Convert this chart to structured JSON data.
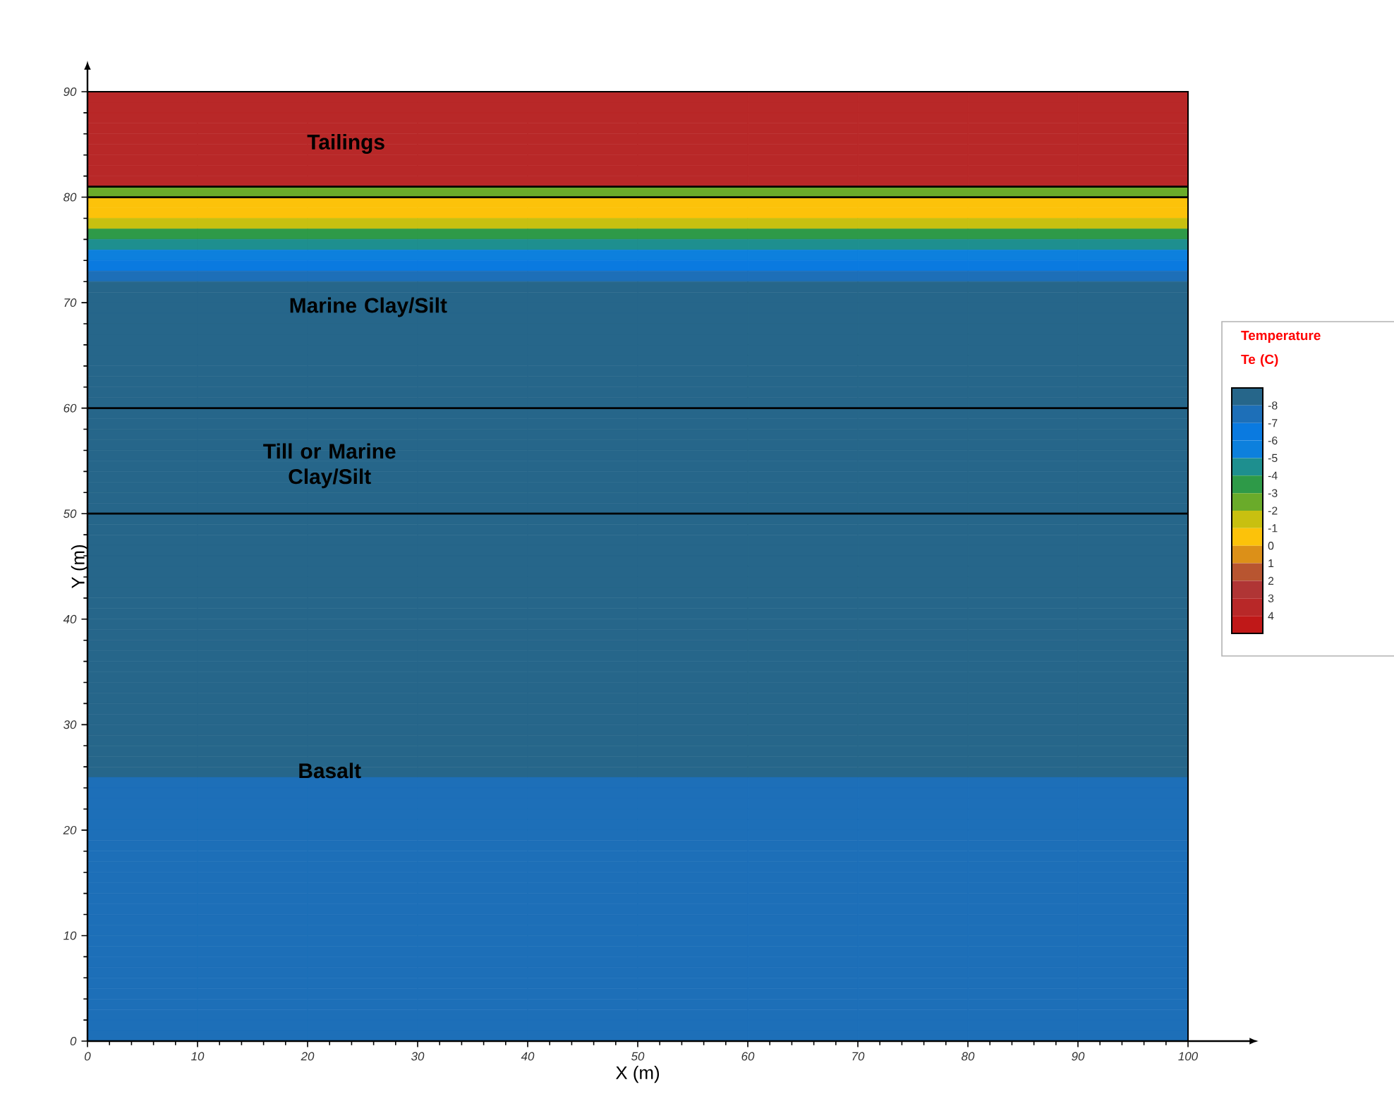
{
  "chart_data": {
    "type": "heatmap",
    "xlabel": "X (m)",
    "ylabel": "Y (m)",
    "clabel": "Temperature Te (C)",
    "xlim": [
      0,
      100
    ],
    "ylim": [
      0,
      90
    ],
    "xticks": [
      0,
      10,
      20,
      30,
      40,
      50,
      60,
      70,
      80,
      90,
      100
    ],
    "yticks": [
      0,
      10,
      20,
      30,
      40,
      50,
      60,
      70,
      80,
      90
    ],
    "x": [
      5,
      15,
      25,
      35,
      45,
      55,
      65,
      75,
      85,
      95
    ],
    "y": [
      89.5,
      88.5,
      87.5,
      86.5,
      85.5,
      84.5,
      83.5,
      82.5,
      81.5,
      80.5,
      79.5,
      78.5,
      77.5,
      76.5,
      75.5,
      74.5,
      73.5,
      72.5,
      71.5,
      70.5,
      69.5,
      68.5,
      67.5,
      66.5,
      65.5,
      64.5,
      63.5,
      62.5,
      61.5,
      60.5,
      59.5,
      58.5,
      57.5,
      56.5,
      55.5,
      54.5,
      53.5,
      52.5,
      51.5,
      50.5,
      49.5,
      48.5,
      47.5,
      46.5,
      45.5,
      44.5,
      43.5,
      42.5,
      41.5,
      40.5,
      39.5,
      38.5,
      37.5,
      36.5,
      35.5,
      34.5,
      33.5,
      32.5,
      31.5,
      30.5,
      29.5,
      28.5,
      27.5,
      26.5,
      25.5,
      24.5,
      23.5,
      22.5,
      21.5,
      20.5,
      19.5,
      18.5,
      17.5,
      16.5,
      15.5,
      14.5,
      13.5,
      12.5,
      11.5,
      10.5,
      9.5,
      8.5,
      7.5,
      6.5,
      5.5,
      4.5,
      3.5,
      2.5,
      1.5,
      0.5
    ],
    "cells": [
      [
        3.5,
        3.5,
        3.5,
        3.5,
        3.5,
        3.5,
        3.5,
        3.5,
        3.5,
        3.5
      ],
      [
        3.5,
        3.5,
        3.5,
        3.5,
        3.5,
        3.5,
        3.5,
        3.5,
        3.5,
        3.5
      ],
      [
        3.5,
        3.5,
        3.5,
        3.5,
        3.5,
        3.5,
        3.5,
        3.5,
        3.5,
        3.5
      ],
      [
        3.5,
        3.5,
        3.5,
        3.5,
        3.5,
        3.5,
        3.5,
        3.5,
        3.5,
        3.5
      ],
      [
        3.5,
        3.5,
        3.5,
        3.5,
        3.5,
        3.5,
        3.5,
        3.5,
        3.5,
        3.5
      ],
      [
        3.5,
        3.5,
        3.5,
        3.5,
        3.5,
        3.5,
        3.5,
        3.5,
        3.5,
        3.5
      ],
      [
        3.5,
        3.5,
        3.5,
        3.5,
        3.5,
        3.5,
        3.5,
        3.5,
        3.5,
        3.5
      ],
      [
        3.5,
        3.5,
        3.5,
        3.5,
        3.5,
        3.5,
        3.5,
        3.5,
        3.5,
        3.5
      ],
      [
        3.5,
        3.5,
        3.5,
        3.5,
        3.5,
        3.5,
        3.5,
        3.5,
        3.5,
        3.5
      ],
      [
        -2.5,
        -2.5,
        -2.5,
        -2.5,
        -2.5,
        -2.5,
        -2.5,
        -2.5,
        -2.5,
        -2.5
      ],
      [
        -0.5,
        -0.5,
        -0.5,
        -0.5,
        -0.5,
        -0.5,
        -0.5,
        -0.5,
        -0.5,
        -0.5
      ],
      [
        -0.5,
        -0.5,
        -0.5,
        -0.5,
        -0.5,
        -0.5,
        -0.5,
        -0.5,
        -0.5,
        -0.5
      ],
      [
        -1.5,
        -1.5,
        -1.5,
        -1.5,
        -1.5,
        -1.5,
        -1.5,
        -1.5,
        -1.5,
        -1.5
      ],
      [
        -3.5,
        -3.5,
        -3.5,
        -3.5,
        -3.5,
        -3.5,
        -3.5,
        -3.5,
        -3.5,
        -3.5
      ],
      [
        -4.5,
        -4.5,
        -4.5,
        -4.5,
        -4.5,
        -4.5,
        -4.5,
        -4.5,
        -4.5,
        -4.5
      ],
      [
        -5.5,
        -5.5,
        -5.5,
        -5.5,
        -5.5,
        -5.5,
        -5.5,
        -5.5,
        -5.5,
        -5.5
      ],
      [
        -6.5,
        -6.5,
        -6.5,
        -6.5,
        -6.5,
        -6.5,
        -6.5,
        -6.5,
        -6.5,
        -6.5
      ],
      [
        -7.5,
        -7.5,
        -7.5,
        -7.5,
        -7.5,
        -7.5,
        -7.5,
        -7.5,
        -7.5,
        -7.5
      ],
      [
        -8.5,
        -8.5,
        -8.5,
        -8.5,
        -8.5,
        -8.5,
        -8.5,
        -8.5,
        -8.5,
        -8.5
      ],
      [
        -8.5,
        -8.5,
        -8.5,
        -8.5,
        -8.5,
        -8.5,
        -8.5,
        -8.5,
        -8.5,
        -8.5
      ],
      [
        -8.5,
        -8.5,
        -8.5,
        -8.5,
        -8.5,
        -8.5,
        -8.5,
        -8.5,
        -8.5,
        -8.5
      ],
      [
        -8.5,
        -8.5,
        -8.5,
        -8.5,
        -8.5,
        -8.5,
        -8.5,
        -8.5,
        -8.5,
        -8.5
      ],
      [
        -8.5,
        -8.5,
        -8.5,
        -8.5,
        -8.5,
        -8.5,
        -8.5,
        -8.5,
        -8.5,
        -8.5
      ],
      [
        -8.5,
        -8.5,
        -8.5,
        -8.5,
        -8.5,
        -8.5,
        -8.5,
        -8.5,
        -8.5,
        -8.5
      ],
      [
        -8.5,
        -8.5,
        -8.5,
        -8.5,
        -8.5,
        -8.5,
        -8.5,
        -8.5,
        -8.5,
        -8.5
      ],
      [
        -8.5,
        -8.5,
        -8.5,
        -8.5,
        -8.5,
        -8.5,
        -8.5,
        -8.5,
        -8.5,
        -8.5
      ],
      [
        -8.5,
        -8.5,
        -8.5,
        -8.5,
        -8.5,
        -8.5,
        -8.5,
        -8.5,
        -8.5,
        -8.5
      ],
      [
        -8.5,
        -8.5,
        -8.5,
        -8.5,
        -8.5,
        -8.5,
        -8.5,
        -8.5,
        -8.5,
        -8.5
      ],
      [
        -8.5,
        -8.5,
        -8.5,
        -8.5,
        -8.5,
        -8.5,
        -8.5,
        -8.5,
        -8.5,
        -8.5
      ],
      [
        -8.5,
        -8.5,
        -8.5,
        -8.5,
        -8.5,
        -8.5,
        -8.5,
        -8.5,
        -8.5,
        -8.5
      ],
      [
        -8.5,
        -8.5,
        -8.5,
        -8.5,
        -8.5,
        -8.5,
        -8.5,
        -8.5,
        -8.5,
        -8.5
      ],
      [
        -8.5,
        -8.5,
        -8.5,
        -8.5,
        -8.5,
        -8.5,
        -8.5,
        -8.5,
        -8.5,
        -8.5
      ],
      [
        -8.5,
        -8.5,
        -8.5,
        -8.5,
        -8.5,
        -8.5,
        -8.5,
        -8.5,
        -8.5,
        -8.5
      ],
      [
        -8.5,
        -8.5,
        -8.5,
        -8.5,
        -8.5,
        -8.5,
        -8.5,
        -8.5,
        -8.5,
        -8.5
      ],
      [
        -8.5,
        -8.5,
        -8.5,
        -8.5,
        -8.5,
        -8.5,
        -8.5,
        -8.5,
        -8.5,
        -8.5
      ],
      [
        -8.5,
        -8.5,
        -8.5,
        -8.5,
        -8.5,
        -8.5,
        -8.5,
        -8.5,
        -8.5,
        -8.5
      ],
      [
        -8.5,
        -8.5,
        -8.5,
        -8.5,
        -8.5,
        -8.5,
        -8.5,
        -8.5,
        -8.5,
        -8.5
      ],
      [
        -8.5,
        -8.5,
        -8.5,
        -8.5,
        -8.5,
        -8.5,
        -8.5,
        -8.5,
        -8.5,
        -8.5
      ],
      [
        -8.5,
        -8.5,
        -8.5,
        -8.5,
        -8.5,
        -8.5,
        -8.5,
        -8.5,
        -8.5,
        -8.5
      ],
      [
        -8.5,
        -8.5,
        -8.5,
        -8.5,
        -8.5,
        -8.5,
        -8.5,
        -8.5,
        -8.5,
        -8.5
      ],
      [
        -8.5,
        -8.5,
        -8.5,
        -8.5,
        -8.5,
        -8.5,
        -8.5,
        -8.5,
        -8.5,
        -8.5
      ],
      [
        -8.5,
        -8.5,
        -8.5,
        -8.5,
        -8.5,
        -8.5,
        -8.5,
        -8.5,
        -8.5,
        -8.5
      ],
      [
        -8.5,
        -8.5,
        -8.5,
        -8.5,
        -8.5,
        -8.5,
        -8.5,
        -8.5,
        -8.5,
        -8.5
      ],
      [
        -8.5,
        -8.5,
        -8.5,
        -8.5,
        -8.5,
        -8.5,
        -8.5,
        -8.5,
        -8.5,
        -8.5
      ],
      [
        -8.5,
        -8.5,
        -8.5,
        -8.5,
        -8.5,
        -8.5,
        -8.5,
        -8.5,
        -8.5,
        -8.5
      ],
      [
        -8.5,
        -8.5,
        -8.5,
        -8.5,
        -8.5,
        -8.5,
        -8.5,
        -8.5,
        -8.5,
        -8.5
      ],
      [
        -8.5,
        -8.5,
        -8.5,
        -8.5,
        -8.5,
        -8.5,
        -8.5,
        -8.5,
        -8.5,
        -8.5
      ],
      [
        -8.5,
        -8.5,
        -8.5,
        -8.5,
        -8.5,
        -8.5,
        -8.5,
        -8.5,
        -8.5,
        -8.5
      ],
      [
        -8.5,
        -8.5,
        -8.5,
        -8.5,
        -8.5,
        -8.5,
        -8.5,
        -8.5,
        -8.5,
        -8.5
      ],
      [
        -8.5,
        -8.5,
        -8.5,
        -8.5,
        -8.5,
        -8.5,
        -8.5,
        -8.5,
        -8.5,
        -8.5
      ],
      [
        -8.5,
        -8.5,
        -8.5,
        -8.5,
        -8.5,
        -8.5,
        -8.5,
        -8.5,
        -8.5,
        -8.5
      ],
      [
        -8.5,
        -8.5,
        -8.5,
        -8.5,
        -8.5,
        -8.5,
        -8.5,
        -8.5,
        -8.5,
        -8.5
      ],
      [
        -8.5,
        -8.5,
        -8.5,
        -8.5,
        -8.5,
        -8.5,
        -8.5,
        -8.5,
        -8.5,
        -8.5
      ],
      [
        -8.5,
        -8.5,
        -8.5,
        -8.5,
        -8.5,
        -8.5,
        -8.5,
        -8.5,
        -8.5,
        -8.5
      ],
      [
        -8.5,
        -8.5,
        -8.5,
        -8.5,
        -8.5,
        -8.5,
        -8.5,
        -8.5,
        -8.5,
        -8.5
      ],
      [
        -8.5,
        -8.5,
        -8.5,
        -8.5,
        -8.5,
        -8.5,
        -8.5,
        -8.5,
        -8.5,
        -8.5
      ],
      [
        -8.5,
        -8.5,
        -8.5,
        -8.5,
        -8.5,
        -8.5,
        -8.5,
        -8.5,
        -8.5,
        -8.5
      ],
      [
        -8.5,
        -8.5,
        -8.5,
        -8.5,
        -8.5,
        -8.5,
        -8.5,
        -8.5,
        -8.5,
        -8.5
      ],
      [
        -8.5,
        -8.5,
        -8.5,
        -8.5,
        -8.5,
        -8.5,
        -8.5,
        -8.5,
        -8.5,
        -8.5
      ],
      [
        -8.5,
        -8.5,
        -8.5,
        -8.5,
        -8.5,
        -8.5,
        -8.5,
        -8.5,
        -8.5,
        -8.5
      ],
      [
        -8.5,
        -8.5,
        -8.5,
        -8.5,
        -8.5,
        -8.5,
        -8.5,
        -8.5,
        -8.5,
        -8.5
      ],
      [
        -8.5,
        -8.5,
        -8.5,
        -8.5,
        -8.5,
        -8.5,
        -8.5,
        -8.5,
        -8.5,
        -8.5
      ],
      [
        -8.5,
        -8.5,
        -8.5,
        -8.5,
        -8.5,
        -8.5,
        -8.5,
        -8.5,
        -8.5,
        -8.5
      ],
      [
        -8.5,
        -8.5,
        -8.5,
        -8.5,
        -8.5,
        -8.5,
        -8.5,
        -8.5,
        -8.5,
        -8.5
      ],
      [
        -8.5,
        -8.5,
        -8.5,
        -8.5,
        -8.5,
        -8.5,
        -8.5,
        -8.5,
        -8.5,
        -8.5
      ],
      [
        -7.5,
        -7.5,
        -7.5,
        -7.5,
        -7.5,
        -7.5,
        -7.5,
        -7.5,
        -7.5,
        -7.5
      ],
      [
        -7.5,
        -7.5,
        -7.5,
        -7.5,
        -7.5,
        -7.5,
        -7.5,
        -7.5,
        -7.5,
        -7.5
      ],
      [
        -7.5,
        -7.5,
        -7.5,
        -7.5,
        -7.5,
        -7.5,
        -7.5,
        -7.5,
        -7.5,
        -7.5
      ],
      [
        -7.5,
        -7.5,
        -7.5,
        -7.5,
        -7.5,
        -7.5,
        -7.5,
        -7.5,
        -7.5,
        -7.5
      ],
      [
        -7.5,
        -7.5,
        -7.5,
        -7.5,
        -7.5,
        -7.5,
        -7.5,
        -7.5,
        -7.5,
        -7.5
      ],
      [
        -7.5,
        -7.5,
        -7.5,
        -7.5,
        -7.5,
        -7.5,
        -7.5,
        -7.5,
        -7.5,
        -7.5
      ],
      [
        -7.5,
        -7.5,
        -7.5,
        -7.5,
        -7.5,
        -7.5,
        -7.5,
        -7.5,
        -7.5,
        -7.5
      ],
      [
        -7.5,
        -7.5,
        -7.5,
        -7.5,
        -7.5,
        -7.5,
        -7.5,
        -7.5,
        -7.5,
        -7.5
      ],
      [
        -7.5,
        -7.5,
        -7.5,
        -7.5,
        -7.5,
        -7.5,
        -7.5,
        -7.5,
        -7.5,
        -7.5
      ],
      [
        -7.5,
        -7.5,
        -7.5,
        -7.5,
        -7.5,
        -7.5,
        -7.5,
        -7.5,
        -7.5,
        -7.5
      ],
      [
        -7.5,
        -7.5,
        -7.5,
        -7.5,
        -7.5,
        -7.5,
        -7.5,
        -7.5,
        -7.5,
        -7.5
      ],
      [
        -7.5,
        -7.5,
        -7.5,
        -7.5,
        -7.5,
        -7.5,
        -7.5,
        -7.5,
        -7.5,
        -7.5
      ],
      [
        -7.5,
        -7.5,
        -7.5,
        -7.5,
        -7.5,
        -7.5,
        -7.5,
        -7.5,
        -7.5,
        -7.5
      ],
      [
        -7.5,
        -7.5,
        -7.5,
        -7.5,
        -7.5,
        -7.5,
        -7.5,
        -7.5,
        -7.5,
        -7.5
      ],
      [
        -7.5,
        -7.5,
        -7.5,
        -7.5,
        -7.5,
        -7.5,
        -7.5,
        -7.5,
        -7.5,
        -7.5
      ],
      [
        -7.5,
        -7.5,
        -7.5,
        -7.5,
        -7.5,
        -7.5,
        -7.5,
        -7.5,
        -7.5,
        -7.5
      ],
      [
        -7.5,
        -7.5,
        -7.5,
        -7.5,
        -7.5,
        -7.5,
        -7.5,
        -7.5,
        -7.5,
        -7.5
      ],
      [
        -7.5,
        -7.5,
        -7.5,
        -7.5,
        -7.5,
        -7.5,
        -7.5,
        -7.5,
        -7.5,
        -7.5
      ],
      [
        -7.5,
        -7.5,
        -7.5,
        -7.5,
        -7.5,
        -7.5,
        -7.5,
        -7.5,
        -7.5,
        -7.5
      ],
      [
        -7.5,
        -7.5,
        -7.5,
        -7.5,
        -7.5,
        -7.5,
        -7.5,
        -7.5,
        -7.5,
        -7.5
      ],
      [
        -7.5,
        -7.5,
        -7.5,
        -7.5,
        -7.5,
        -7.5,
        -7.5,
        -7.5,
        -7.5,
        -7.5
      ],
      [
        -7.5,
        -7.5,
        -7.5,
        -7.5,
        -7.5,
        -7.5,
        -7.5,
        -7.5,
        -7.5,
        -7.5
      ],
      [
        -7.5,
        -7.5,
        -7.5,
        -7.5,
        -7.5,
        -7.5,
        -7.5,
        -7.5,
        -7.5,
        -7.5
      ],
      [
        -7.5,
        -7.5,
        -7.5,
        -7.5,
        -7.5,
        -7.5,
        -7.5,
        -7.5,
        -7.5,
        -7.5
      ],
      [
        -7.5,
        -7.5,
        -7.5,
        -7.5,
        -7.5,
        -7.5,
        -7.5,
        -7.5,
        -7.5,
        -7.5
      ]
    ],
    "clim": [
      -9,
      5
    ],
    "cticks": [
      -8,
      -7,
      -6,
      -5,
      -4,
      -3,
      -2,
      -1,
      0,
      1,
      2,
      3,
      4
    ],
    "ref_lines": [
      {
        "axis": "y",
        "value": 81
      },
      {
        "axis": "y",
        "value": 80
      },
      {
        "axis": "y",
        "value": 60
      },
      {
        "axis": "y",
        "value": 50
      }
    ],
    "annotations": [
      "Tailings",
      "Marine Clay/Silt",
      "Till or Marine Clay/Silt",
      "Basalt"
    ],
    "grid": false
  }
}
